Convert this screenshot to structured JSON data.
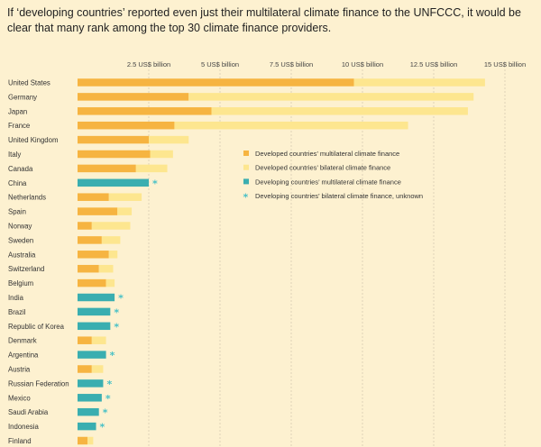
{
  "title": "If ‘developing countries’ reported even just their multilateral climate finance to the UNFCCC, it would be clear that many rank among the top 30 climate finance providers.",
  "colors": {
    "background": "#fdf1d0",
    "developed_multilateral": "#f6b441",
    "developed_bilateral": "#fde68f",
    "developing_multilateral": "#3aaeb0",
    "developing_bilateral_unknown": "#49c1c6",
    "grid": "#d9cdb3"
  },
  "chart_data": {
    "type": "bar",
    "orientation": "horizontal",
    "stacked": true,
    "x_unit": "US$ billion",
    "xlim": [
      0,
      15
    ],
    "xticks": [
      2.5,
      5,
      7.5,
      10,
      12.5,
      15
    ],
    "xtick_labels": [
      "2.5 US$ billion",
      "5 US$ billion",
      "7.5 US$ billion",
      "10 US$ billion",
      "12.5 US$ billion",
      "15 US$ billion"
    ],
    "grid": "vertical dashed",
    "legend": {
      "placement": "center-right",
      "entries": [
        {
          "label": "Developed countries’ multilateral climate finance",
          "key": "developed_multilateral",
          "marker": "square"
        },
        {
          "label": "Developed countries’ bilateral climate finance",
          "key": "developed_bilateral",
          "marker": "square"
        },
        {
          "label": "Developing countries’ multilateral climate finance",
          "key": "developing_multilateral",
          "marker": "square"
        },
        {
          "label": "Developing countries’ bilateral climate finance, unknown",
          "key": "developing_bilateral_unknown",
          "marker": "asterisk"
        }
      ]
    },
    "categories": [
      "United States",
      "Germany",
      "Japan",
      "France",
      "United Kingdom",
      "Italy",
      "Canada",
      "China",
      "Netherlands",
      "Spain",
      "Norway",
      "Sweden",
      "Australia",
      "Switzerland",
      "Belgium",
      "India",
      "Brazil",
      "Republic of Korea",
      "Denmark",
      "Argentina",
      "Austria",
      "Russian Federation",
      "Mexico",
      "Saudi Arabia",
      "Indonesia",
      "Finland"
    ],
    "group": [
      "developed",
      "developed",
      "developed",
      "developed",
      "developed",
      "developed",
      "developed",
      "developing",
      "developed",
      "developed",
      "developed",
      "developed",
      "developed",
      "developed",
      "developed",
      "developing",
      "developing",
      "developing",
      "developed",
      "developing",
      "developed",
      "developing",
      "developing",
      "developing",
      "developing",
      "developed"
    ],
    "series": [
      {
        "name": "Multilateral",
        "values": [
          9.7,
          3.9,
          4.7,
          3.4,
          2.5,
          2.55,
          2.05,
          2.5,
          1.1,
          1.4,
          0.5,
          0.85,
          1.1,
          0.75,
          1.0,
          1.3,
          1.15,
          1.15,
          0.5,
          1.0,
          0.5,
          0.9,
          0.85,
          0.75,
          0.65,
          0.35
        ]
      },
      {
        "name": "Bilateral",
        "values": [
          4.6,
          10.0,
          9.0,
          8.2,
          1.4,
          0.8,
          1.1,
          0,
          1.15,
          0.5,
          1.35,
          0.65,
          0.3,
          0.5,
          0.3,
          0,
          0,
          0,
          0.5,
          0,
          0.4,
          0,
          0,
          0,
          0,
          0.2
        ]
      }
    ],
    "bilateral_unknown": [
      false,
      false,
      false,
      false,
      false,
      false,
      false,
      true,
      false,
      false,
      false,
      false,
      false,
      false,
      false,
      true,
      true,
      true,
      false,
      true,
      false,
      true,
      true,
      true,
      true,
      false
    ]
  }
}
